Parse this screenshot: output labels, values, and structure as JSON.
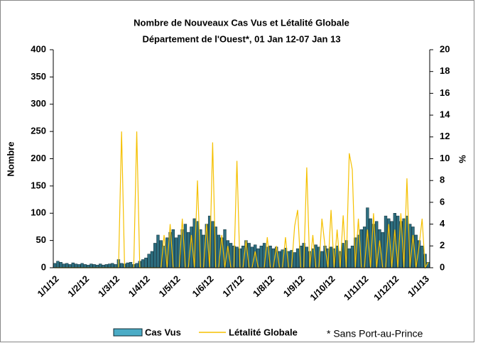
{
  "chart_data": {
    "type": "bar_line",
    "title": "Nombre de Nouveaux Cas Vus et Létalité Globale",
    "subtitle": "Département de l'Ouest*, 01 Jan 12-07 Jan 13",
    "y_label": "Nombre",
    "y2_label": "%",
    "annotation": "* Sans Port-au-Prince",
    "categories": [
      "1/1/12",
      null,
      null,
      null,
      null,
      null,
      null,
      null,
      null,
      null,
      "1/2/12",
      null,
      null,
      null,
      null,
      null,
      null,
      null,
      null,
      null,
      "1/3/12",
      null,
      null,
      null,
      null,
      null,
      null,
      null,
      null,
      null,
      "1/4/12",
      null,
      null,
      null,
      null,
      null,
      null,
      null,
      null,
      null,
      "1/5/12",
      null,
      null,
      null,
      null,
      null,
      null,
      null,
      null,
      null,
      null,
      "1/6/12",
      null,
      null,
      null,
      null,
      null,
      null,
      null,
      null,
      null,
      "1/7/12",
      null,
      null,
      null,
      null,
      null,
      null,
      null,
      null,
      null,
      "1/8/12",
      null,
      null,
      null,
      null,
      null,
      null,
      null,
      null,
      null,
      "1/9/12",
      null,
      null,
      null,
      null,
      null,
      null,
      null,
      null,
      null,
      "1/10/12",
      null,
      null,
      null,
      null,
      null,
      null,
      null,
      null,
      null,
      null,
      "1/11/12",
      null,
      null,
      null,
      null,
      null,
      null,
      null,
      null,
      null,
      "1/12/12",
      null,
      null,
      null,
      null,
      null,
      null,
      null,
      null,
      null,
      "1/1/13",
      null
    ],
    "series": [
      {
        "name": "Cas Vus",
        "color": "#2e6f80",
        "legend_color": "#4bacc6",
        "values": [
          8,
          12,
          10,
          7,
          8,
          6,
          9,
          7,
          6,
          8,
          6,
          5,
          7,
          6,
          5,
          7,
          5,
          6,
          7,
          8,
          6,
          15,
          8,
          7,
          9,
          10,
          6,
          8,
          12,
          15,
          18,
          25,
          30,
          45,
          60,
          50,
          40,
          55,
          65,
          70,
          55,
          60,
          70,
          80,
          65,
          75,
          90,
          85,
          70,
          60,
          80,
          95,
          85,
          75,
          60,
          55,
          70,
          50,
          45,
          40,
          38,
          35,
          40,
          50,
          45,
          38,
          42,
          35,
          40,
          45,
          38,
          40,
          35,
          38,
          30,
          33,
          36,
          30,
          32,
          28,
          35,
          40,
          45,
          38,
          30,
          35,
          42,
          38,
          30,
          40,
          35,
          38,
          35,
          40,
          30,
          45,
          50,
          35,
          40,
          55,
          60,
          70,
          75,
          110,
          90,
          80,
          85,
          70,
          65,
          95,
          90,
          85,
          100,
          95,
          85,
          90,
          95,
          80,
          75,
          60,
          50,
          40,
          25,
          10
        ]
      },
      {
        "name": "Létalité Globale",
        "color": "#f5c000",
        "axis": "y2",
        "values": [
          0,
          0,
          0,
          0,
          0,
          0,
          0,
          0,
          0,
          0,
          0,
          0,
          0,
          0,
          0,
          0,
          0,
          0,
          0,
          0,
          0,
          0,
          12.5,
          0,
          0,
          0,
          0,
          12.5,
          0,
          0,
          0,
          0,
          0,
          0,
          0,
          0,
          3,
          0,
          4,
          0,
          0,
          0,
          4.5,
          0,
          0,
          3,
          0,
          8,
          0,
          0,
          4,
          0,
          11.5,
          0,
          0,
          3,
          0,
          2,
          0,
          0,
          9.8,
          0,
          0,
          2.5,
          0,
          0,
          1.5,
          0,
          0,
          0,
          2.8,
          0,
          0,
          2,
          0,
          0,
          2.8,
          0,
          0,
          3.8,
          5.3,
          0,
          0,
          9.2,
          0,
          3,
          0,
          0,
          4.5,
          2,
          0,
          5.3,
          0,
          3.5,
          0,
          4.8,
          0,
          10.5,
          9,
          0,
          4.5,
          0,
          0,
          3.5,
          0,
          5,
          0,
          2.5,
          0,
          0,
          4,
          0,
          3.5,
          0,
          5,
          0,
          8.2,
          0,
          3,
          0,
          2,
          4.5,
          0,
          0.5
        ]
      }
    ],
    "ylim": [
      0,
      400
    ],
    "yticks": [
      0,
      50,
      100,
      150,
      200,
      250,
      300,
      350,
      400
    ],
    "y2lim": [
      0,
      20
    ],
    "y2ticks": [
      0,
      2,
      4,
      6,
      8,
      10,
      12,
      14,
      16,
      18,
      20
    ],
    "grid": false,
    "legend": "bottom"
  }
}
